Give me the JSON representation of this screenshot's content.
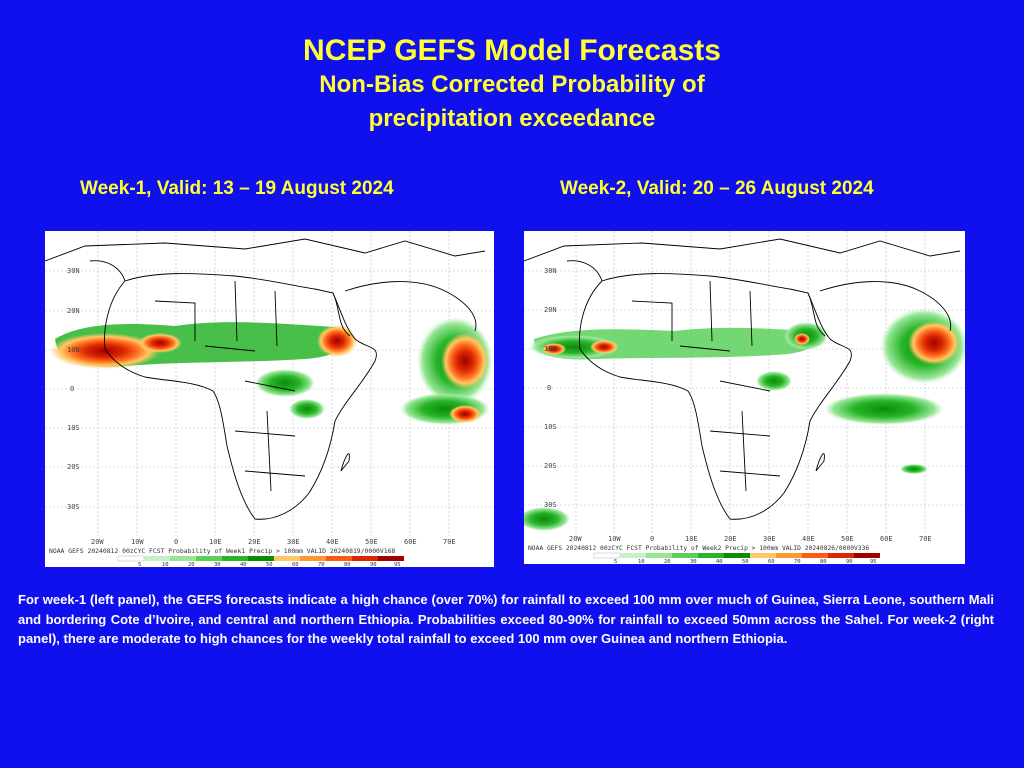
{
  "title": {
    "main": "NCEP GEFS Model Forecasts",
    "sub_line1": "Non-Bias Corrected Probability of",
    "sub_line2": "precipitation exceedance"
  },
  "panels": [
    {
      "label": "Week-1, Valid: 13 – 19 August 2024",
      "lat_labels": [
        "30N",
        "20N",
        "10N",
        "0",
        "10S",
        "20S",
        "30S"
      ],
      "lon_labels": [
        "20W",
        "10W",
        "0",
        "10E",
        "20E",
        "30E",
        "40E",
        "50E",
        "60E",
        "70E"
      ],
      "footer": "NOAA GEFS 20240812 00zCYC FCST Probability of Week1 Precip > 100mm VALID 20240819/0000V168",
      "scale_values": [
        "5",
        "10",
        "20",
        "30",
        "40",
        "50",
        "60",
        "70",
        "80",
        "90",
        "95"
      ]
    },
    {
      "label": "Week-2, Valid: 20 – 26 August 2024",
      "lat_labels": [
        "30N",
        "20N",
        "10N",
        "0",
        "10S",
        "20S",
        "30S"
      ],
      "lon_labels": [
        "20W",
        "10W",
        "0",
        "10E",
        "20E",
        "30E",
        "40E",
        "50E",
        "60E",
        "70E"
      ],
      "footer": "NOAA GEFS 20240812 00zCYC FCST Probability of Week2 Precip > 100mm VALID 20240826/0000V336",
      "scale_values": [
        "5",
        "10",
        "20",
        "30",
        "40",
        "50",
        "60",
        "70",
        "80",
        "90",
        "95"
      ]
    }
  ],
  "scale_colors": [
    "#ffffff",
    "#c8f0c8",
    "#96e696",
    "#5ad05a",
    "#28b428",
    "#0a8c0a",
    "#ffc864",
    "#ff9632",
    "#ff5a14",
    "#dc2800",
    "#a00000"
  ],
  "caption": "For week-1 (left panel), the GEFS forecasts indicate a high chance (over 70%) for rainfall to exceed 100 mm over much of Guinea, Sierra Leone, southern Mali and bordering Cote d’Ivoire, and central and northern Ethiopia. Probabilities exceed 80-90% for rainfall to exceed 50mm across the Sahel.  For week-2 (right panel), there are moderate to high chances for the weekly total rainfall to exceed 100 mm over Guinea and northern Ethiopia."
}
